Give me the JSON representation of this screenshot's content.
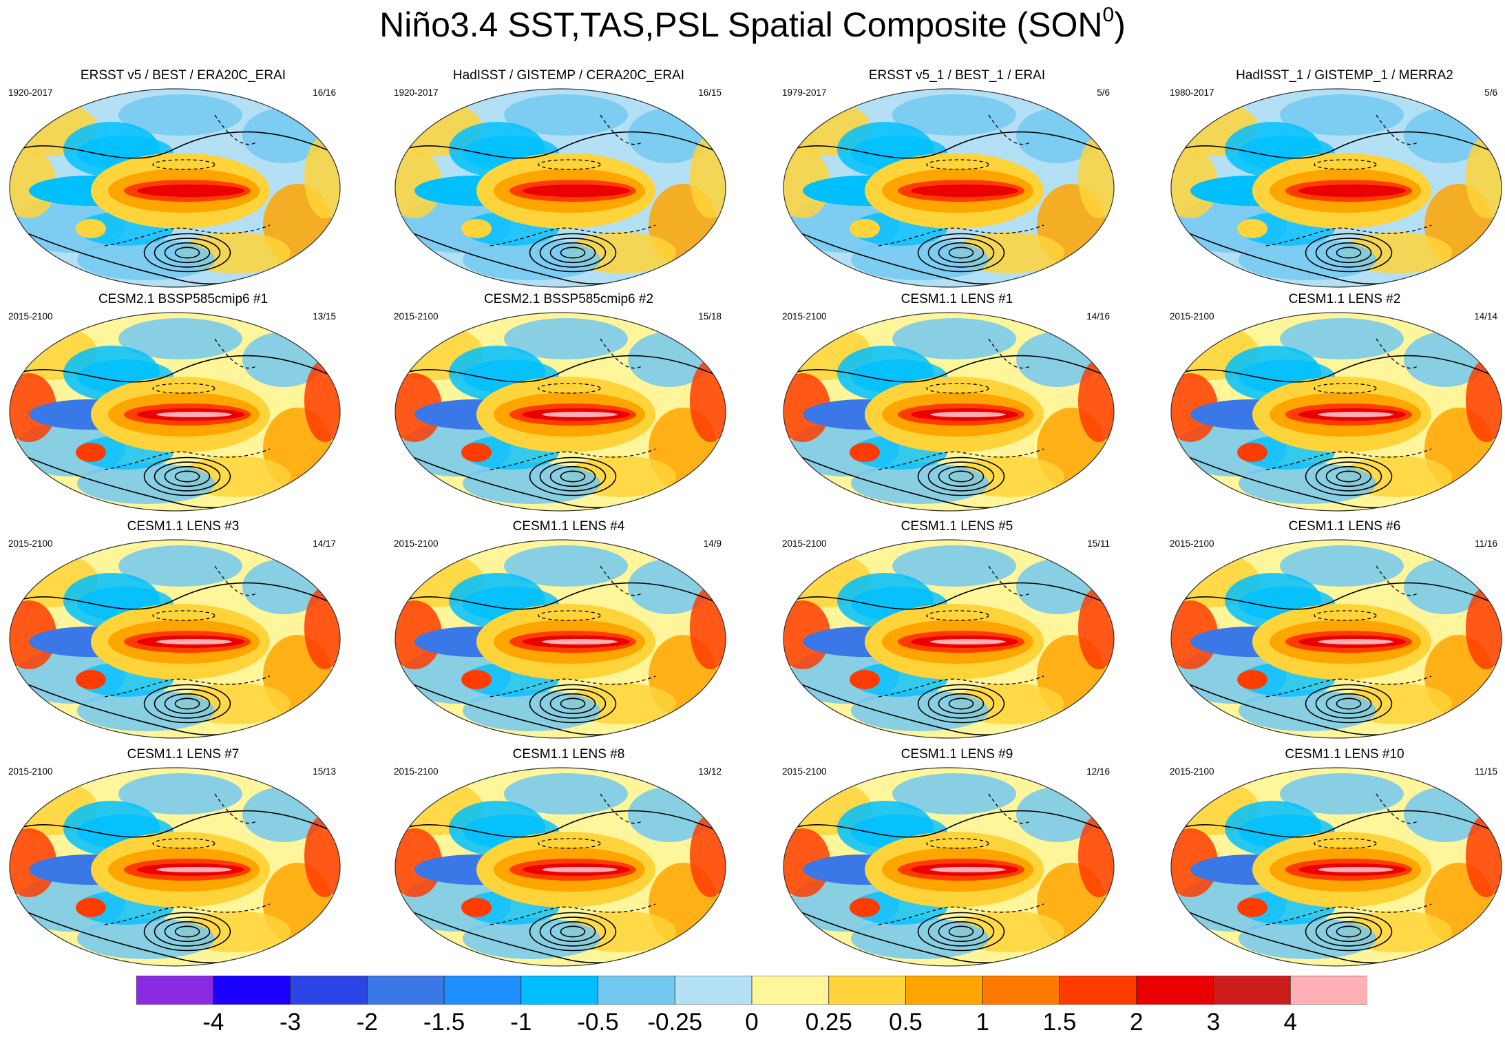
{
  "title": {
    "main": "Niño3.4 SST,TAS,PSL Spatial Composite (SON",
    "superscript": "0",
    "close": ")"
  },
  "panels": [
    {
      "title": "ERSST v5 / BEST / ERA20C_ERAI",
      "period": "1920-2017",
      "count": "16/16",
      "variant": "obs"
    },
    {
      "title": "HadISST / GISTEMP / CERA20C_ERAI",
      "period": "1920-2017",
      "count": "16/15",
      "variant": "obs"
    },
    {
      "title": "ERSST v5_1 / BEST_1 / ERAI",
      "period": "1979-2017",
      "count": "5/6",
      "variant": "obs"
    },
    {
      "title": "HadISST_1 / GISTEMP_1 / MERRA2",
      "period": "1980-2017",
      "count": "5/6",
      "variant": "obs"
    },
    {
      "title": "CESM2.1 BSSP585cmip6 #1",
      "period": "2015-2100",
      "count": "13/15",
      "variant": "model"
    },
    {
      "title": "CESM2.1 BSSP585cmip6 #2",
      "period": "2015-2100",
      "count": "15/18",
      "variant": "model"
    },
    {
      "title": "CESM1.1 LENS #1",
      "period": "2015-2100",
      "count": "14/16",
      "variant": "model"
    },
    {
      "title": "CESM1.1 LENS #2",
      "period": "2015-2100",
      "count": "14/14",
      "variant": "model"
    },
    {
      "title": "CESM1.1 LENS #3",
      "period": "2015-2100",
      "count": "14/17",
      "variant": "model"
    },
    {
      "title": "CESM1.1 LENS #4",
      "period": "2015-2100",
      "count": "14/9",
      "variant": "model"
    },
    {
      "title": "CESM1.1 LENS #5",
      "period": "2015-2100",
      "count": "15/11",
      "variant": "model"
    },
    {
      "title": "CESM1.1 LENS #6",
      "period": "2015-2100",
      "count": "11/16",
      "variant": "model"
    },
    {
      "title": "CESM1.1 LENS #7",
      "period": "2015-2100",
      "count": "15/13",
      "variant": "model"
    },
    {
      "title": "CESM1.1 LENS #8",
      "period": "2015-2100",
      "count": "13/12",
      "variant": "model"
    },
    {
      "title": "CESM1.1 LENS #9",
      "period": "2015-2100",
      "count": "12/16",
      "variant": "model"
    },
    {
      "title": "CESM1.1 LENS #10",
      "period": "2015-2100",
      "count": "11/15",
      "variant": "model"
    }
  ],
  "colorbar": {
    "colors": [
      "#8a2be2",
      "#1a00ff",
      "#2b45e6",
      "#3a78e8",
      "#1e8fff",
      "#00bfff",
      "#73c8f0",
      "#b3e0f5",
      "#fff59a",
      "#ffd43a",
      "#ffa500",
      "#ff7800",
      "#ff3c00",
      "#ea0000",
      "#cc1c1c",
      "#ffb0b5"
    ],
    "labels": [
      "-4",
      "-3",
      "-2",
      "-1.5",
      "-1",
      "-0.5",
      "-0.25",
      "0",
      "0.25",
      "0.5",
      "1",
      "1.5",
      "2",
      "3",
      "4"
    ]
  }
}
